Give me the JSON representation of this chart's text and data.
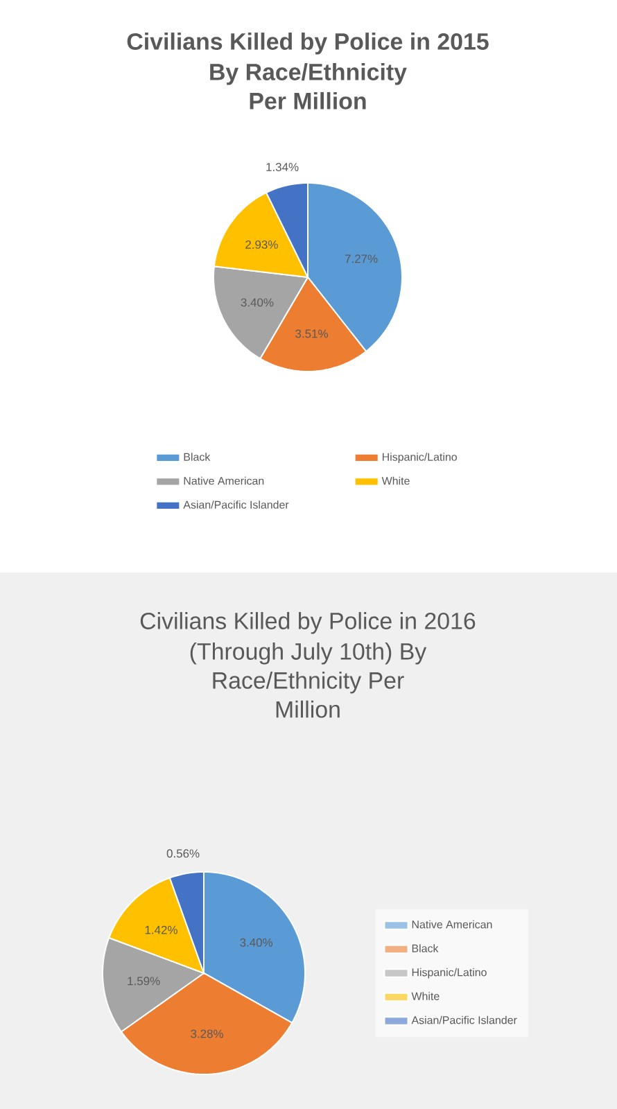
{
  "chart_data": [
    {
      "type": "pie",
      "title": "Civilians Killed by Police in 2015",
      "subtitle": "By Race/Ethnicity Per Million",
      "categories": [
        "Black",
        "Hispanic/Latino",
        "Native American",
        "White",
        "Asian/Pacific Islander"
      ],
      "values": [
        7.27,
        3.51,
        3.4,
        2.93,
        1.34
      ],
      "value_labels": [
        "7.27%",
        "3.51%",
        "3.40%",
        "2.93%",
        "1.34%"
      ],
      "colors": [
        "#5b9bd5",
        "#ed7d31",
        "#a5a5a5",
        "#ffc000",
        "#4472c4"
      ],
      "legend": "bottom"
    },
    {
      "type": "pie",
      "title": "Civilians Killed by Police in 2016",
      "subtitle": "(Through July 10th) By Race/Ethnicity Per Million",
      "categories": [
        "Native American",
        "Black",
        "Hispanic/Latino",
        "White",
        "Asian/Pacific Islander"
      ],
      "values": [
        3.4,
        3.28,
        1.59,
        1.42,
        0.56
      ],
      "value_labels": [
        "3.40%",
        "3.28%",
        "1.59%",
        "1.42%",
        "0.56%"
      ],
      "colors": [
        "#5b9bd5",
        "#ed7d31",
        "#a5a5a5",
        "#ffc000",
        "#4472c4"
      ],
      "legend": "right"
    }
  ]
}
